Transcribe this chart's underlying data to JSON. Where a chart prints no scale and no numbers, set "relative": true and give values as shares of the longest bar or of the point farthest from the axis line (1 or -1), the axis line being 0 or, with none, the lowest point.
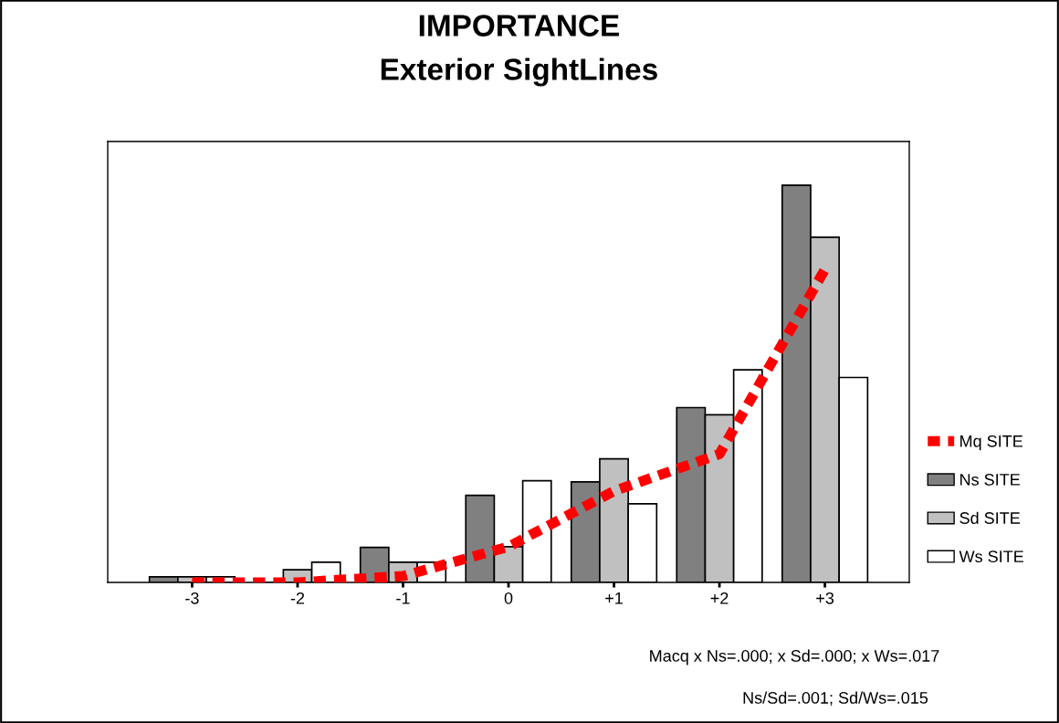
{
  "chart_data": {
    "type": "bar",
    "title": "IMPORTANCE\nExterior SightLines",
    "relative": true,
    "categories": [
      "-3",
      "-2",
      "-1",
      "0",
      "+1",
      "+2",
      "+3"
    ],
    "series": [
      {
        "name": "Mq SITE",
        "type": "line",
        "color": "#ff0000",
        "line_style": "dashed",
        "values": [
          0,
          0,
          0.016,
          0.09,
          0.23,
          0.323,
          0.788
        ]
      },
      {
        "name": "Ns SITE",
        "color": "#808080",
        "values": [
          0.014,
          0,
          0.088,
          0.219,
          0.253,
          0.44,
          1
        ]
      },
      {
        "name": "Sd SITE",
        "color": "#c0c0c0",
        "values": [
          0.014,
          0.032,
          0.051,
          0.09,
          0.311,
          0.422,
          0.869
        ]
      },
      {
        "name": "Ws SITE",
        "color": "#ffffff",
        "values": [
          0.014,
          0.051,
          0.051,
          0.256,
          0.198,
          0.535,
          0.516
        ]
      }
    ],
    "legend": "right",
    "grid": false,
    "annotations": [
      "Macq x Ns=.000; x Sd=.000; x Ws=.017",
      "Ns/Sd=.001; Sd/Ws=.015"
    ]
  }
}
